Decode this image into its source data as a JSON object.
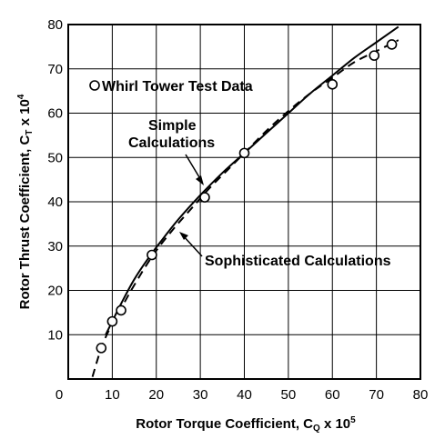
{
  "chart_data": {
    "type": "line",
    "xlabel": "Rotor Torque Coefficient, C",
    "xlabel_sub": "Q",
    "xlabel_tail": " x 10",
    "xlabel_sup": "5",
    "ylabel": "Rotor Thrust Coefficient, C",
    "ylabel_sub": "T",
    "ylabel_tail": " x 10",
    "ylabel_sup": "4",
    "xlim": [
      0,
      80
    ],
    "ylim": [
      0,
      80
    ],
    "xticks": [
      "0",
      "10",
      "20",
      "30",
      "40",
      "50",
      "60",
      "70",
      "80"
    ],
    "yticks": [
      "10",
      "20",
      "30",
      "40",
      "50",
      "60",
      "70",
      "80"
    ],
    "grid": true,
    "legend": {
      "label": "Whirl Tower Test Data",
      "placement": "top-left"
    },
    "series": [
      {
        "name": "Whirl Tower Test Data",
        "style": "open-circle-markers",
        "x": [
          7.5,
          10.0,
          12.0,
          19.0,
          31.0,
          40.0,
          60.0,
          69.5,
          73.5
        ],
        "y": [
          7.0,
          13.0,
          15.5,
          28.0,
          41.0,
          51.0,
          66.5,
          73.0,
          75.5
        ]
      },
      {
        "name": "Simple Calculations",
        "style": "dashed",
        "x": [
          5.5,
          7.5,
          9.5,
          11.5,
          14,
          17,
          20,
          24,
          28,
          32,
          36,
          40,
          45,
          50,
          55,
          60,
          65,
          70,
          75
        ],
        "y": [
          0.5,
          7.0,
          11.5,
          15.0,
          19.5,
          24.5,
          29.0,
          34.0,
          38.5,
          43.0,
          47.0,
          51.0,
          56.0,
          60.5,
          64.5,
          68.0,
          71.5,
          74.0,
          76.5
        ]
      },
      {
        "name": "Sophisticated Calculations",
        "style": "solid",
        "x": [
          8.5,
          10,
          12,
          15,
          18,
          21,
          25,
          30,
          35,
          40,
          45,
          50,
          55,
          60,
          65,
          70,
          75
        ],
        "y": [
          10.0,
          13.0,
          17.0,
          22.5,
          27.0,
          31.0,
          36.0,
          41.5,
          46.5,
          51.0,
          55.5,
          60.0,
          64.5,
          68.5,
          72.5,
          76.0,
          79.5
        ]
      }
    ],
    "annotations": [
      {
        "text": "Simple",
        "points_to": "Simple Calculations"
      },
      {
        "text": "Calculations",
        "points_to": "Simple Calculations"
      },
      {
        "text": "Sophisticated Calculations",
        "points_to": "Sophisticated Calculations"
      }
    ]
  }
}
